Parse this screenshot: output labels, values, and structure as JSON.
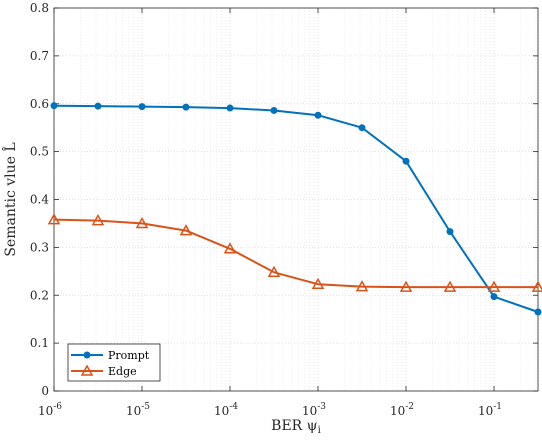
{
  "chart_data": {
    "type": "line",
    "xlabel": "BER ψ",
    "xlabel_sub": "i",
    "ylabel": "Semantic vlue L̂",
    "xscale": "log",
    "xlim": [
      1e-06,
      0.316
    ],
    "ylim": [
      0,
      0.8
    ],
    "grid": true,
    "legend_position": "bottom-left",
    "x": [
      1e-06,
      3.16e-06,
      1e-05,
      3.16e-05,
      0.0001,
      0.000316,
      0.001,
      0.00316,
      0.01,
      0.0316,
      0.1,
      0.316
    ],
    "x_ticks": [
      1e-06,
      1e-05,
      0.0001,
      0.001,
      0.01,
      0.1
    ],
    "x_tick_bases": [
      "10",
      "10",
      "10",
      "10",
      "10",
      "10"
    ],
    "x_tick_exps": [
      "-6",
      "-5",
      "-4",
      "-3",
      "-2",
      "-1"
    ],
    "y_ticks": [
      0,
      0.1,
      0.2,
      0.3,
      0.4,
      0.5,
      0.6,
      0.7,
      0.8
    ],
    "y_tick_labels": [
      "0",
      "0.1",
      "0.2",
      "0.3",
      "0.4",
      "0.5",
      "0.6",
      "0.7",
      "0.8"
    ],
    "series": [
      {
        "name": "Prompt",
        "color": "#0072BD",
        "marker": "circle",
        "values": [
          0.596,
          0.595,
          0.594,
          0.593,
          0.591,
          0.586,
          0.576,
          0.55,
          0.48,
          0.333,
          0.197,
          0.165
        ]
      },
      {
        "name": "Edge",
        "color": "#D95319",
        "marker": "triangle",
        "values": [
          0.358,
          0.356,
          0.35,
          0.335,
          0.297,
          0.248,
          0.223,
          0.218,
          0.217,
          0.217,
          0.217,
          0.217
        ]
      }
    ]
  }
}
